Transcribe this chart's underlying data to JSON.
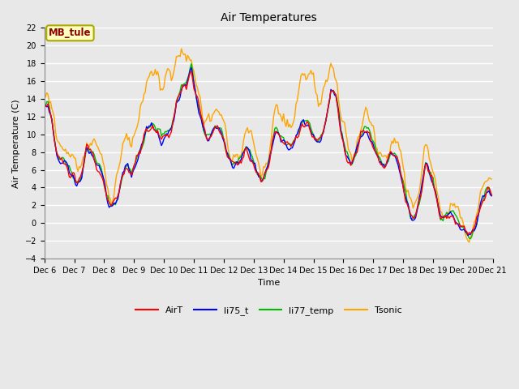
{
  "title": "Air Temperatures",
  "xlabel": "Time",
  "ylabel": "Air Temperature (C)",
  "ylim": [
    -4,
    22
  ],
  "tick_labels": [
    "Dec 6",
    "Dec 7",
    "Dec 8",
    "Dec 9",
    "Dec 10",
    "Dec 11",
    "Dec 12",
    "Dec 13",
    "Dec 14",
    "Dec 15",
    "Dec 16",
    "Dec 17",
    "Dec 18",
    "Dec 19",
    "Dec 20",
    "Dec 21"
  ],
  "annotation_text": "MB_tule",
  "annotation_color": "#8B0000",
  "annotation_bg": "#FFFFC0",
  "annotation_border": "#AAAA00",
  "line_colors": {
    "AirT": "#FF0000",
    "li75_t": "#0000FF",
    "li77_temp": "#00BB00",
    "Tsonic": "#FFA500"
  },
  "line_width": 1.0,
  "fig_bg_color": "#E8E8E8",
  "plot_bg": "#E8E8E8",
  "grid_color": "#FFFFFF",
  "legend_labels": [
    "AirT",
    "li75_t",
    "li77_temp",
    "Tsonic"
  ],
  "title_fontsize": 10,
  "label_fontsize": 8,
  "tick_fontsize": 7,
  "legend_fontsize": 8
}
